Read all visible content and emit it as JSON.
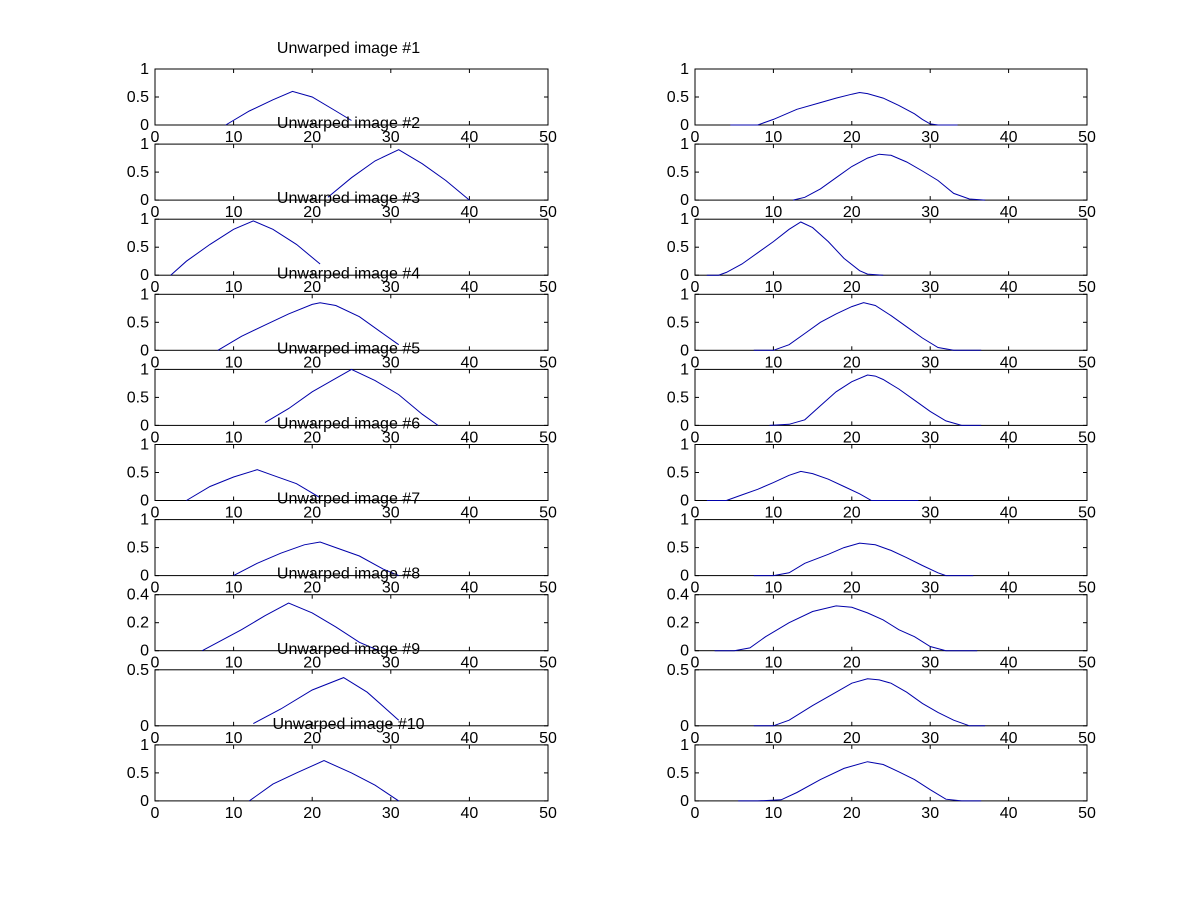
{
  "figure": {
    "background": "#ffffff",
    "line_color": "#0000aa"
  },
  "chart_data": [
    {
      "type": "line",
      "panel": "1-left",
      "title": "Unwarped image #1",
      "xlim": [
        0,
        50
      ],
      "ylim": [
        0,
        1
      ],
      "xticks": [
        "0",
        "10",
        "20",
        "30",
        "40",
        "50"
      ],
      "yticks": [
        "0",
        "0.5",
        "1"
      ],
      "series": [
        {
          "x": [
            9,
            12,
            15,
            17.5,
            20,
            23,
            25
          ],
          "y": [
            0,
            0.25,
            0.45,
            0.6,
            0.5,
            0.25,
            0.08
          ]
        }
      ]
    },
    {
      "type": "line",
      "panel": "1-right",
      "title": "",
      "xlim": [
        0,
        50
      ],
      "ylim": [
        0,
        1
      ],
      "xticks": [
        "0",
        "10",
        "20",
        "30",
        "40",
        "50"
      ],
      "yticks": [
        "0",
        "0.5",
        "1"
      ],
      "series": [
        {
          "x": [
            4.5,
            8,
            10,
            13,
            16,
            18,
            20,
            21,
            22,
            24,
            26,
            28,
            29,
            30,
            31,
            33.5
          ],
          "y": [
            0,
            0,
            0.1,
            0.28,
            0.4,
            0.48,
            0.55,
            0.58,
            0.56,
            0.48,
            0.35,
            0.2,
            0.1,
            0.02,
            0,
            0
          ]
        }
      ]
    },
    {
      "type": "line",
      "panel": "2-left",
      "title": "Unwarped image #2",
      "xlim": [
        0,
        50
      ],
      "ylim": [
        0,
        1
      ],
      "xticks": [
        "0",
        "10",
        "20",
        "30",
        "40",
        "50"
      ],
      "yticks": [
        "0",
        "0.5",
        "1"
      ],
      "series": [
        {
          "x": [
            22,
            25,
            28,
            31,
            34,
            37,
            40
          ],
          "y": [
            0.05,
            0.4,
            0.7,
            0.9,
            0.65,
            0.35,
            0
          ]
        }
      ]
    },
    {
      "type": "line",
      "panel": "2-right",
      "title": "",
      "xlim": [
        0,
        50
      ],
      "ylim": [
        0,
        1
      ],
      "xticks": [
        "0",
        "10",
        "20",
        "30",
        "40",
        "50"
      ],
      "yticks": [
        "0",
        "0.5",
        "1"
      ],
      "series": [
        {
          "x": [
            12.5,
            14,
            16,
            18,
            20,
            22,
            23.5,
            25,
            27,
            29,
            31,
            33,
            35,
            37
          ],
          "y": [
            0,
            0.05,
            0.2,
            0.4,
            0.6,
            0.75,
            0.82,
            0.8,
            0.68,
            0.52,
            0.35,
            0.12,
            0.02,
            0
          ]
        }
      ]
    },
    {
      "type": "line",
      "panel": "3-left",
      "title": "Unwarped image #3",
      "xlim": [
        0,
        50
      ],
      "ylim": [
        0,
        1
      ],
      "xticks": [
        "0",
        "10",
        "20",
        "30",
        "40",
        "50"
      ],
      "yticks": [
        "0",
        "0.5",
        "1"
      ],
      "series": [
        {
          "x": [
            2,
            4,
            7,
            10,
            12.5,
            15,
            18,
            21
          ],
          "y": [
            0,
            0.25,
            0.55,
            0.82,
            0.97,
            0.82,
            0.55,
            0.2
          ]
        }
      ]
    },
    {
      "type": "line",
      "panel": "3-right",
      "title": "",
      "xlim": [
        0,
        50
      ],
      "ylim": [
        0,
        1
      ],
      "xticks": [
        "0",
        "10",
        "20",
        "30",
        "40",
        "50"
      ],
      "yticks": [
        "0",
        "0.5",
        "1"
      ],
      "series": [
        {
          "x": [
            1.5,
            3,
            4,
            6,
            8,
            10,
            12,
            13.5,
            15,
            17,
            19,
            21,
            22,
            24
          ],
          "y": [
            0,
            0,
            0.05,
            0.2,
            0.4,
            0.6,
            0.82,
            0.95,
            0.85,
            0.6,
            0.3,
            0.08,
            0.02,
            0
          ]
        }
      ]
    },
    {
      "type": "line",
      "panel": "4-left",
      "title": "Unwarped image #4",
      "xlim": [
        0,
        50
      ],
      "ylim": [
        0,
        1
      ],
      "xticks": [
        "0",
        "10",
        "20",
        "30",
        "40",
        "50"
      ],
      "yticks": [
        "0",
        "0.5",
        "1"
      ],
      "series": [
        {
          "x": [
            8,
            11,
            14,
            17,
            20,
            21,
            23,
            26,
            29,
            31
          ],
          "y": [
            0,
            0.25,
            0.45,
            0.65,
            0.82,
            0.85,
            0.8,
            0.6,
            0.3,
            0.1
          ]
        }
      ]
    },
    {
      "type": "line",
      "panel": "4-right",
      "title": "",
      "xlim": [
        0,
        50
      ],
      "ylim": [
        0,
        1
      ],
      "xticks": [
        "0",
        "10",
        "20",
        "30",
        "40",
        "50"
      ],
      "yticks": [
        "0",
        "0.5",
        "1"
      ],
      "series": [
        {
          "x": [
            7.5,
            10,
            12,
            14,
            16,
            18,
            20,
            21.5,
            23,
            25,
            27,
            29,
            31,
            33,
            36.5
          ],
          "y": [
            0,
            0,
            0.1,
            0.3,
            0.5,
            0.65,
            0.78,
            0.85,
            0.8,
            0.62,
            0.42,
            0.22,
            0.05,
            0,
            0
          ]
        }
      ]
    },
    {
      "type": "line",
      "panel": "5-left",
      "title": "Unwarped image #5",
      "xlim": [
        0,
        50
      ],
      "ylim": [
        0,
        1
      ],
      "xticks": [
        "0",
        "10",
        "20",
        "30",
        "40",
        "50"
      ],
      "yticks": [
        "0",
        "0.5",
        "1"
      ],
      "series": [
        {
          "x": [
            14,
            17,
            20,
            22.5,
            25,
            28,
            31,
            34,
            36
          ],
          "y": [
            0.05,
            0.3,
            0.6,
            0.8,
            1.0,
            0.8,
            0.55,
            0.2,
            0
          ]
        }
      ]
    },
    {
      "type": "line",
      "panel": "5-right",
      "title": "",
      "xlim": [
        0,
        50
      ],
      "ylim": [
        0,
        1
      ],
      "xticks": [
        "0",
        "10",
        "20",
        "30",
        "40",
        "50"
      ],
      "yticks": [
        "0",
        "0.5",
        "1"
      ],
      "series": [
        {
          "x": [
            9.5,
            12,
            14,
            16,
            18,
            20,
            22,
            23,
            24,
            26,
            28,
            30,
            32,
            34,
            36.5
          ],
          "y": [
            0,
            0.02,
            0.1,
            0.35,
            0.6,
            0.78,
            0.9,
            0.88,
            0.82,
            0.65,
            0.45,
            0.25,
            0.08,
            0,
            0
          ]
        }
      ]
    },
    {
      "type": "line",
      "panel": "6-left",
      "title": "Unwarped image #6",
      "xlim": [
        0,
        50
      ],
      "ylim": [
        0,
        1
      ],
      "xticks": [
        "0",
        "10",
        "20",
        "30",
        "40",
        "50"
      ],
      "yticks": [
        "0",
        "0.5",
        "1"
      ],
      "series": [
        {
          "x": [
            4,
            7,
            10,
            13,
            15,
            18,
            21
          ],
          "y": [
            0,
            0.25,
            0.42,
            0.55,
            0.45,
            0.3,
            0.05
          ]
        }
      ]
    },
    {
      "type": "line",
      "panel": "6-right",
      "title": "",
      "xlim": [
        0,
        50
      ],
      "ylim": [
        0,
        1
      ],
      "xticks": [
        "0",
        "10",
        "20",
        "30",
        "40",
        "50"
      ],
      "yticks": [
        "0",
        "0.5",
        "1"
      ],
      "series": [
        {
          "x": [
            1.5,
            4,
            6,
            8,
            10,
            12,
            13.5,
            15,
            17,
            19,
            21,
            22.5,
            25,
            28.5
          ],
          "y": [
            0,
            0,
            0.1,
            0.2,
            0.32,
            0.45,
            0.52,
            0.48,
            0.38,
            0.25,
            0.12,
            0,
            0,
            0
          ]
        }
      ]
    },
    {
      "type": "line",
      "panel": "7-left",
      "title": "Unwarped image #7",
      "xlim": [
        0,
        50
      ],
      "ylim": [
        0,
        1
      ],
      "xticks": [
        "0",
        "10",
        "20",
        "30",
        "40",
        "50"
      ],
      "yticks": [
        "0",
        "0.5",
        "1"
      ],
      "series": [
        {
          "x": [
            10,
            13,
            16,
            19,
            21,
            23,
            26,
            29,
            31
          ],
          "y": [
            0,
            0.22,
            0.4,
            0.55,
            0.6,
            0.5,
            0.35,
            0.12,
            0
          ]
        }
      ]
    },
    {
      "type": "line",
      "panel": "7-right",
      "title": "",
      "xlim": [
        0,
        50
      ],
      "ylim": [
        0,
        1
      ],
      "xticks": [
        "0",
        "10",
        "20",
        "30",
        "40",
        "50"
      ],
      "yticks": [
        "0",
        "0.5",
        "1"
      ],
      "series": [
        {
          "x": [
            7.5,
            10,
            12,
            14,
            17,
            19,
            21,
            23,
            25,
            27,
            29,
            31,
            32,
            35.5
          ],
          "y": [
            0,
            0,
            0.05,
            0.22,
            0.38,
            0.5,
            0.58,
            0.55,
            0.45,
            0.32,
            0.18,
            0.05,
            0,
            0
          ]
        }
      ]
    },
    {
      "type": "line",
      "panel": "8-left",
      "title": "Unwarped image #8",
      "xlim": [
        0,
        50
      ],
      "ylim": [
        0,
        0.4
      ],
      "xticks": [
        "0",
        "10",
        "20",
        "30",
        "40",
        "50"
      ],
      "yticks": [
        "0",
        "0.2",
        "0.4"
      ],
      "series": [
        {
          "x": [
            6,
            8,
            11,
            14,
            17,
            20,
            23,
            26,
            28.5
          ],
          "y": [
            0,
            0.06,
            0.15,
            0.25,
            0.34,
            0.27,
            0.17,
            0.06,
            0
          ]
        }
      ]
    },
    {
      "type": "line",
      "panel": "8-right",
      "title": "",
      "xlim": [
        0,
        50
      ],
      "ylim": [
        0,
        0.4
      ],
      "xticks": [
        "0",
        "10",
        "20",
        "30",
        "40",
        "50"
      ],
      "yticks": [
        "0",
        "0.2",
        "0.4"
      ],
      "series": [
        {
          "x": [
            2.5,
            5,
            7,
            9,
            12,
            15,
            18,
            20,
            22,
            24,
            26,
            28,
            30,
            32,
            36
          ],
          "y": [
            0,
            0,
            0.02,
            0.1,
            0.2,
            0.28,
            0.32,
            0.31,
            0.27,
            0.22,
            0.15,
            0.1,
            0.03,
            0,
            0
          ]
        }
      ]
    },
    {
      "type": "line",
      "panel": "9-left",
      "title": "Unwarped image #9",
      "xlim": [
        0,
        50
      ],
      "ylim": [
        0,
        0.5
      ],
      "xticks": [
        "0",
        "10",
        "20",
        "30",
        "40",
        "50"
      ],
      "yticks": [
        "0",
        "0.5"
      ],
      "series": [
        {
          "x": [
            12.5,
            16,
            20,
            24,
            27,
            31
          ],
          "y": [
            0.02,
            0.15,
            0.32,
            0.43,
            0.3,
            0.05
          ]
        }
      ]
    },
    {
      "type": "line",
      "panel": "9-right",
      "title": "",
      "xlim": [
        0,
        50
      ],
      "ylim": [
        0,
        0.5
      ],
      "xticks": [
        "0",
        "10",
        "20",
        "30",
        "40",
        "50"
      ],
      "yticks": [
        "0",
        "0.5"
      ],
      "series": [
        {
          "x": [
            7.5,
            10,
            12,
            15,
            18,
            20,
            22,
            23.5,
            25,
            27,
            29,
            31,
            33,
            35,
            37
          ],
          "y": [
            0,
            0,
            0.05,
            0.18,
            0.3,
            0.38,
            0.42,
            0.41,
            0.38,
            0.3,
            0.2,
            0.12,
            0.05,
            0,
            0
          ]
        }
      ]
    },
    {
      "type": "line",
      "panel": "10-left",
      "title": "Unwarped image #10",
      "xlim": [
        0,
        50
      ],
      "ylim": [
        0,
        1
      ],
      "xticks": [
        "0",
        "10",
        "20",
        "30",
        "40",
        "50"
      ],
      "yticks": [
        "0",
        "0.5",
        "1"
      ],
      "series": [
        {
          "x": [
            12,
            15,
            18,
            21.5,
            25,
            28,
            31
          ],
          "y": [
            0,
            0.3,
            0.5,
            0.72,
            0.5,
            0.28,
            0
          ]
        }
      ]
    },
    {
      "type": "line",
      "panel": "10-right",
      "title": "",
      "xlim": [
        0,
        50
      ],
      "ylim": [
        0,
        1
      ],
      "xticks": [
        "0",
        "10",
        "20",
        "30",
        "40",
        "50"
      ],
      "yticks": [
        "0",
        "0.5",
        "1"
      ],
      "series": [
        {
          "x": [
            5.5,
            8,
            11,
            13,
            16,
            19,
            22,
            24,
            26,
            28,
            30,
            32,
            34,
            36.5
          ],
          "y": [
            0,
            0,
            0.02,
            0.15,
            0.38,
            0.58,
            0.7,
            0.65,
            0.52,
            0.38,
            0.2,
            0.03,
            0,
            0
          ]
        }
      ]
    }
  ]
}
